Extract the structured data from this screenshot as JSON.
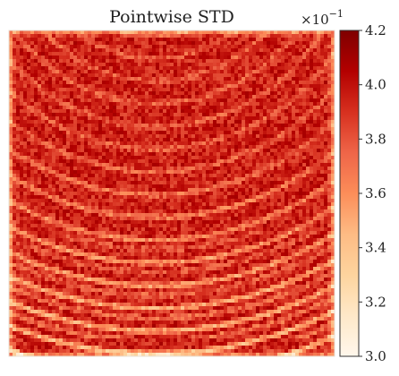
{
  "chart_data": {
    "type": "heatmap",
    "title": "Pointwise STD",
    "colormap": "OrRd",
    "colorbar": {
      "multiplier_base": "×10",
      "multiplier_exp": "−1",
      "min": 3.0,
      "max": 4.2,
      "ticks": [
        3.0,
        3.2,
        3.4,
        3.6,
        3.8,
        4.0,
        4.2
      ],
      "tick_labels": [
        "3.0",
        "3.2",
        "3.4",
        "3.6",
        "3.8",
        "4.0",
        "4.2"
      ]
    },
    "colorscale": [
      "#fff7ec",
      "#fee8c8",
      "#fdd49e",
      "#fdbb84",
      "#fc8d59",
      "#ef6548",
      "#d7301f",
      "#b30000",
      "#7f0000"
    ],
    "field": {
      "typical_value": 3.95,
      "description_of_pattern": "mostly high values (~3.9–4.1) with lighter concentric arc streaks in the lower half"
    },
    "axes_visible": false,
    "grid": false
  }
}
